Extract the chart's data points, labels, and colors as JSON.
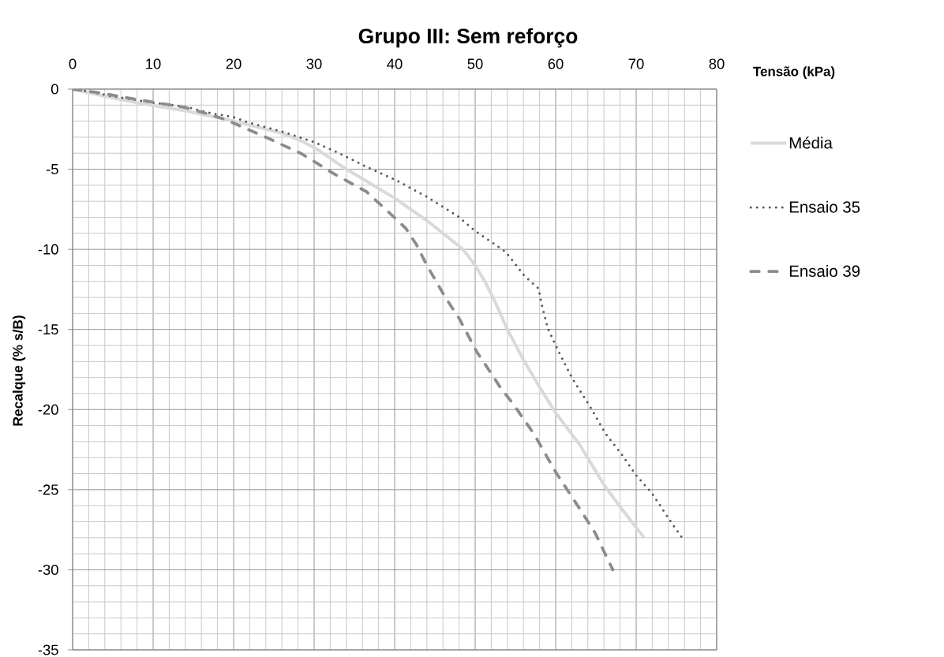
{
  "chart_data": {
    "type": "line",
    "title": "Grupo III: Sem reforço",
    "xlabel": "Tensão (kPa)",
    "ylabel": "Recalque (% s/B)",
    "xlim": [
      0,
      80
    ],
    "ylim": [
      -35,
      0
    ],
    "xticks": [
      0,
      10,
      20,
      30,
      40,
      50,
      60,
      70,
      80
    ],
    "yticks": [
      -35,
      -30,
      -25,
      -20,
      -15,
      -10,
      -5,
      0
    ],
    "grid": true,
    "legend": "right",
    "series": [
      {
        "name": "Média",
        "color": "#d9d9d9",
        "line_style": "solid",
        "x": [
          0,
          4,
          8,
          14,
          20,
          26,
          28.5,
          30.5,
          34,
          37,
          40,
          44,
          46.5,
          48.5,
          50,
          51.2,
          52.5,
          54,
          56,
          58,
          60,
          63,
          66,
          68.2,
          71
        ],
        "values": [
          0,
          -0.45,
          -0.85,
          -1.35,
          -2.0,
          -2.75,
          -3.25,
          -3.8,
          -5.0,
          -5.9,
          -6.8,
          -8.2,
          -9.2,
          -10.0,
          -11.0,
          -12.0,
          -13.3,
          -15.0,
          -16.9,
          -18.6,
          -20.2,
          -22.2,
          -24.7,
          -26.2,
          -28.0
        ]
      },
      {
        "name": "Ensaio 35",
        "color": "#595959",
        "line_style": "dotted",
        "x": [
          0,
          1.7,
          5,
          10,
          14,
          17.2,
          20,
          21.8,
          26.1,
          30,
          33.3,
          36.6,
          40.2,
          44,
          47.9,
          50,
          53.8,
          56.1,
          57.9,
          58.2,
          59,
          60,
          62,
          64.3,
          66.2,
          68.2,
          70,
          72,
          74.3,
          75.7
        ],
        "values": [
          0,
          -0.12,
          -0.45,
          -0.85,
          -1.1,
          -1.5,
          -1.75,
          -2.08,
          -2.66,
          -3.3,
          -4.05,
          -4.87,
          -5.69,
          -6.72,
          -7.95,
          -8.85,
          -10.16,
          -11.64,
          -12.46,
          -13.3,
          -14.9,
          -16.0,
          -18.0,
          -19.84,
          -21.5,
          -22.8,
          -24.1,
          -25.25,
          -27.0,
          -28.0
        ]
      },
      {
        "name": "Ensaio 39",
        "color": "#8c8c8c",
        "line_style": "dashed",
        "x": [
          0,
          3,
          8,
          14,
          16.5,
          19,
          24,
          28.5,
          32.5,
          36.5,
          39.3,
          41.4,
          42.7,
          44,
          46.3,
          48,
          50.2,
          51.8,
          53.1,
          54.8,
          57.4,
          60,
          63,
          64.9,
          67.1
        ],
        "values": [
          0,
          -0.2,
          -0.65,
          -1.15,
          -1.5,
          -1.9,
          -3.0,
          -4.05,
          -5.3,
          -6.4,
          -7.7,
          -8.7,
          -9.7,
          -11.0,
          -13.0,
          -14.3,
          -16.4,
          -17.6,
          -18.6,
          -19.7,
          -21.6,
          -23.9,
          -26.2,
          -27.7,
          -30.0
        ]
      }
    ]
  }
}
